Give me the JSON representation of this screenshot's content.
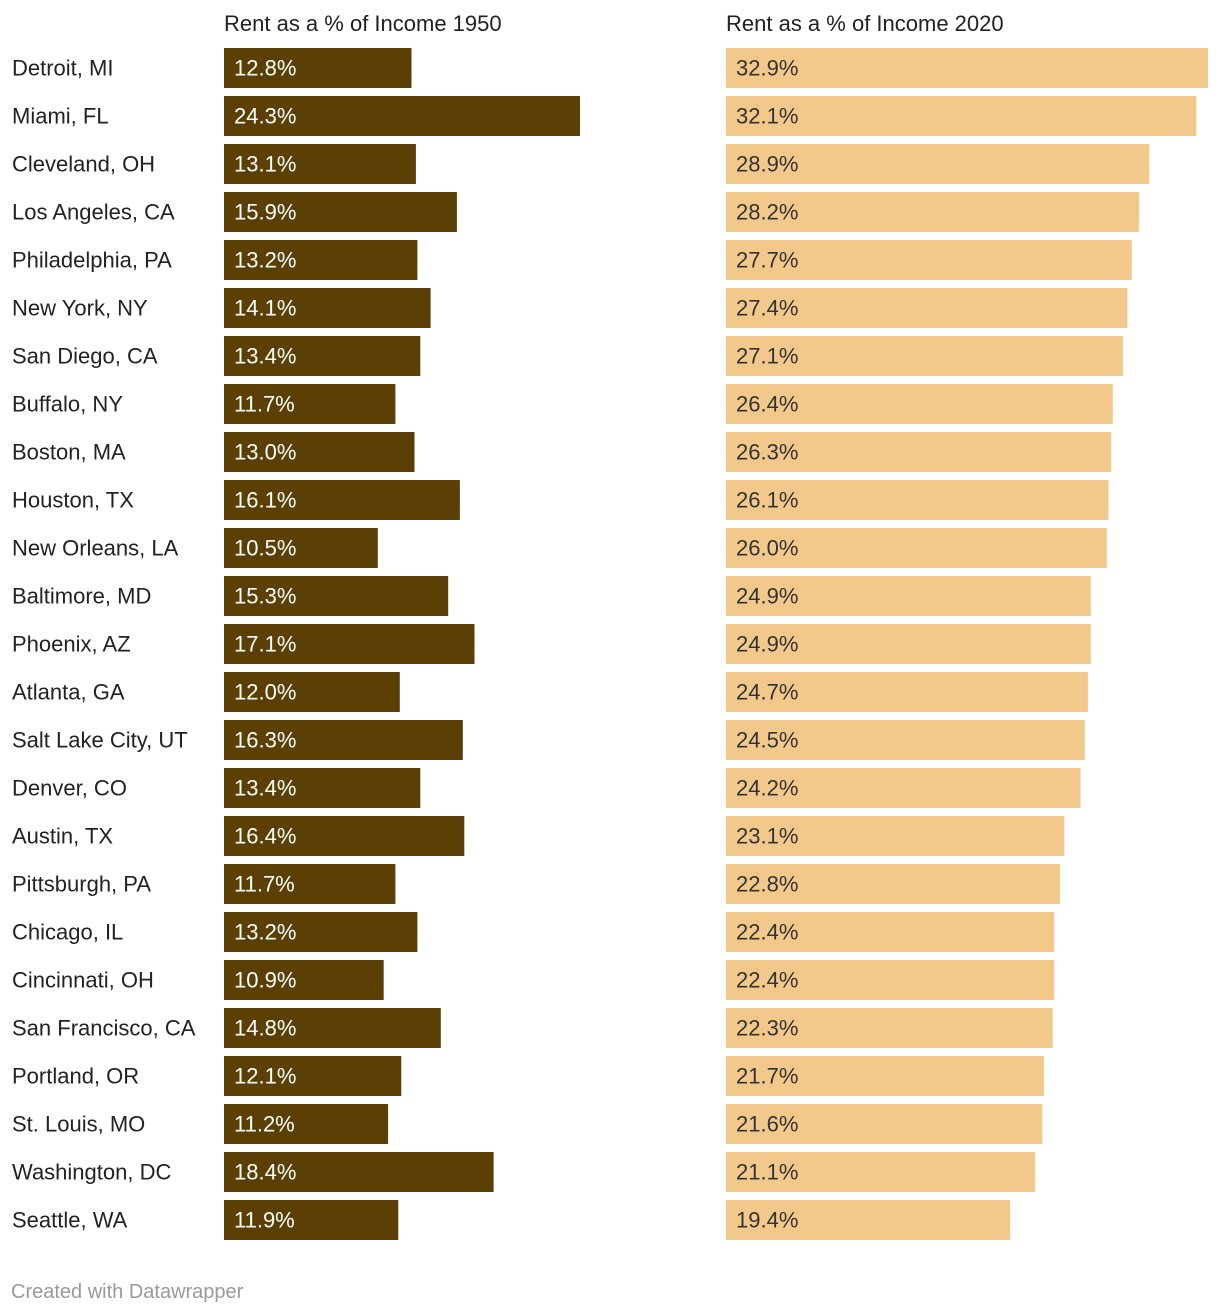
{
  "chart_data": {
    "type": "bar",
    "categories": [
      "Detroit, MI",
      "Miami, FL",
      "Cleveland, OH",
      "Los Angeles, CA",
      "Philadelphia, PA",
      "New York, NY",
      "San Diego, CA",
      "Buffalo, NY",
      "Boston, MA",
      "Houston, TX",
      "New Orleans, LA",
      "Baltimore, MD",
      "Phoenix, AZ",
      "Atlanta, GA",
      "Salt Lake City, UT",
      "Denver, CO",
      "Austin, TX",
      "Pittsburgh, PA",
      "Chicago, IL",
      "Cincinnati, OH",
      "San Francisco, CA",
      "Portland, OR",
      "St. Louis, MO",
      "Washington, DC",
      "Seattle, WA"
    ],
    "series": [
      {
        "name": "Rent as a % of Income 1950",
        "color": "#5c3f05",
        "label_color": "#ffffff",
        "values": [
          12.8,
          24.3,
          13.1,
          15.9,
          13.2,
          14.1,
          13.4,
          11.7,
          13.0,
          16.1,
          10.5,
          15.3,
          17.1,
          12.0,
          16.3,
          13.4,
          16.4,
          11.7,
          13.2,
          10.9,
          14.8,
          12.1,
          11.2,
          18.4,
          11.9
        ],
        "labels": [
          "12.8%",
          "24.3%",
          "13.1%",
          "15.9%",
          "13.2%",
          "14.1%",
          "13.4%",
          "11.7%",
          "13.0%",
          "16.1%",
          "10.5%",
          "15.3%",
          "17.1%",
          "12.0%",
          "16.3%",
          "13.4%",
          "16.4%",
          "11.7%",
          "13.2%",
          "10.9%",
          "14.8%",
          "12.1%",
          "11.2%",
          "18.4%",
          "11.9%"
        ]
      },
      {
        "name": "Rent as a % of Income 2020",
        "color": "#f2c98a",
        "label_color": "#333333",
        "values": [
          32.9,
          32.1,
          28.9,
          28.2,
          27.7,
          27.4,
          27.1,
          26.4,
          26.3,
          26.1,
          26.0,
          24.9,
          24.9,
          24.7,
          24.5,
          24.2,
          23.1,
          22.8,
          22.4,
          22.4,
          22.3,
          21.7,
          21.6,
          21.1,
          19.4
        ],
        "labels": [
          "32.9%",
          "32.1%",
          "28.9%",
          "28.2%",
          "27.7%",
          "27.4%",
          "27.1%",
          "26.4%",
          "26.3%",
          "26.1%",
          "26.0%",
          "24.9%",
          "24.9%",
          "24.7%",
          "24.5%",
          "24.2%",
          "23.1%",
          "22.8%",
          "22.4%",
          "22.4%",
          "22.3%",
          "21.7%",
          "21.6%",
          "21.1%",
          "19.4%"
        ]
      }
    ],
    "xlim": [
      0,
      32.9
    ],
    "grid": false,
    "legend": "column headers above each panel"
  },
  "credit": "Created with Datawrapper"
}
